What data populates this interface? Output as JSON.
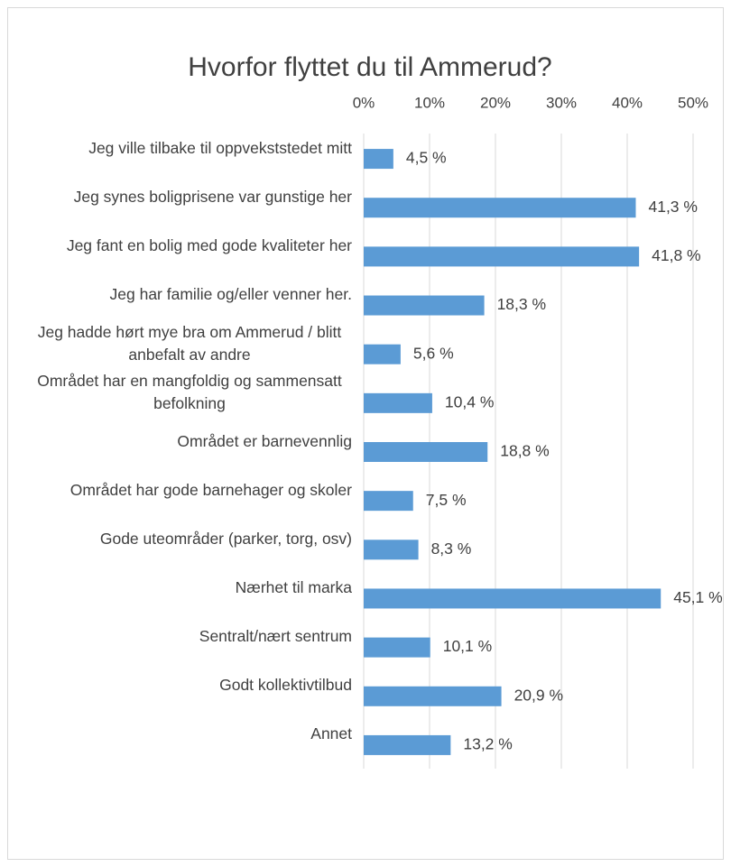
{
  "chart_data": {
    "type": "bar",
    "orientation": "horizontal",
    "title": "Hvorfor flyttet du til Ammerud?",
    "categories": [
      "Jeg ville tilbake til oppvekststedet mitt",
      "Jeg synes boligprisene var gunstige her",
      "Jeg fant en bolig med gode kvaliteter her",
      "Jeg har familie og/eller venner her.",
      "Jeg hadde hørt mye bra om Ammerud / blitt anbefalt av andre",
      "Området har en mangfoldig og sammensatt befolkning",
      "Området er barnevennlig",
      "Området har gode barnehager og skoler",
      "Gode uteområder (parker, torg, osv)",
      "Nærhet til marka",
      "Sentralt/nært sentrum",
      "Godt kollektivtilbud",
      "Annet"
    ],
    "values": [
      4.5,
      41.3,
      41.8,
      18.3,
      5.6,
      10.4,
      18.8,
      7.5,
      8.3,
      45.1,
      10.1,
      20.9,
      13.2
    ],
    "value_labels": [
      "4,5 %",
      "41,3 %",
      "41,8 %",
      "18,3 %",
      "5,6 %",
      "10,4 %",
      "18,8 %",
      "7,5 %",
      "8,3 %",
      "45,1 %",
      "10,1 %",
      "20,9 %",
      "13,2 %"
    ],
    "color": "#5b9bd5",
    "xlim": [
      0,
      50
    ],
    "xticks": [
      {
        "value": 0,
        "label": "0%"
      },
      {
        "value": 10,
        "label": "10%"
      },
      {
        "value": 20,
        "label": "20%"
      },
      {
        "value": 30,
        "label": "30%"
      },
      {
        "value": 40,
        "label": "40%"
      },
      {
        "value": 50,
        "label": "50%"
      }
    ],
    "grid": true
  }
}
